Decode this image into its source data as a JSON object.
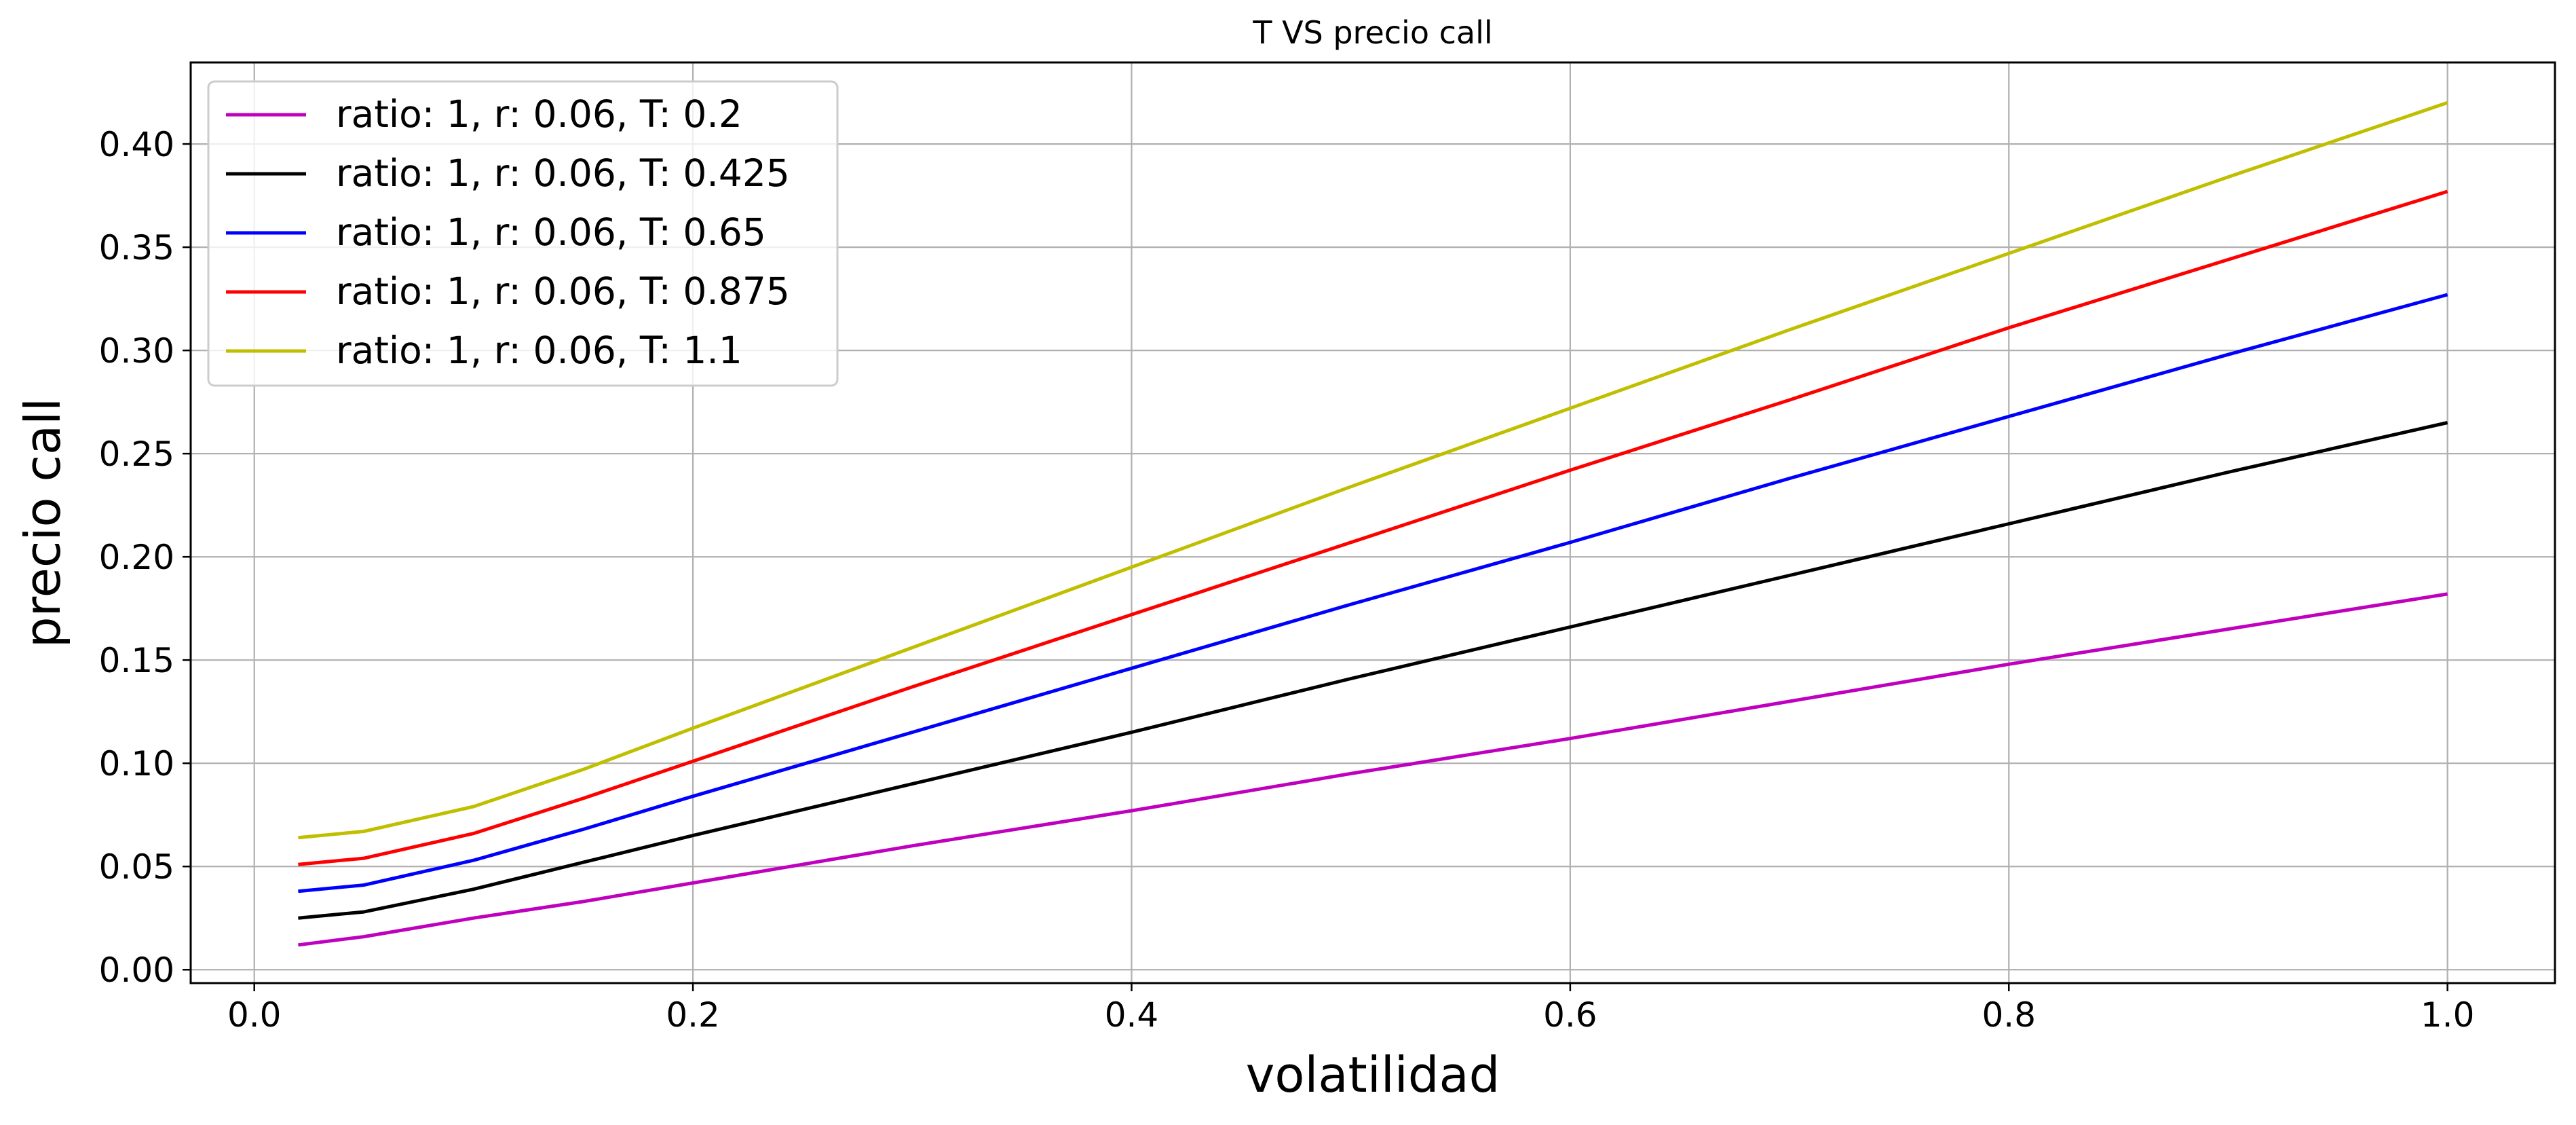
{
  "chart_data": {
    "type": "line",
    "title": "T VS precio call",
    "xlabel": "volatilidad",
    "ylabel": "precio call",
    "xlim": [
      -0.029,
      1.049
    ],
    "ylim": [
      -0.0065,
      0.4395
    ],
    "xticks": [
      0.0,
      0.2,
      0.4,
      0.6,
      0.8,
      1.0
    ],
    "xtick_labels": [
      "0.0",
      "0.2",
      "0.4",
      "0.6",
      "0.8",
      "1.0"
    ],
    "yticks": [
      0.0,
      0.05,
      0.1,
      0.15,
      0.2,
      0.25,
      0.3,
      0.35,
      0.4
    ],
    "ytick_labels": [
      "0.00",
      "0.05",
      "0.10",
      "0.15",
      "0.20",
      "0.25",
      "0.30",
      "0.35",
      "0.40"
    ],
    "grid": true,
    "legend_position": "top-left",
    "series": [
      {
        "name": "ratio: 1, r: 0.06, T: 0.2",
        "color": "#bf00bf",
        "x": [
          0.02,
          0.05,
          0.1,
          0.15,
          0.2,
          0.3,
          0.4,
          0.5,
          0.6,
          0.7,
          0.8,
          0.9,
          1.0
        ],
        "y": [
          0.012,
          0.016,
          0.025,
          0.033,
          0.042,
          0.06,
          0.077,
          0.095,
          0.112,
          0.13,
          0.148,
          0.165,
          0.182
        ]
      },
      {
        "name": "ratio: 1, r: 0.06, T: 0.425",
        "color": "#000000",
        "x": [
          0.02,
          0.05,
          0.1,
          0.15,
          0.2,
          0.3,
          0.4,
          0.5,
          0.6,
          0.7,
          0.8,
          0.9,
          1.0
        ],
        "y": [
          0.025,
          0.028,
          0.039,
          0.052,
          0.065,
          0.09,
          0.115,
          0.141,
          0.166,
          0.191,
          0.216,
          0.241,
          0.265
        ]
      },
      {
        "name": "ratio: 1, r: 0.06, T: 0.65",
        "color": "#0000ff",
        "x": [
          0.02,
          0.05,
          0.1,
          0.15,
          0.2,
          0.3,
          0.4,
          0.5,
          0.6,
          0.7,
          0.8,
          0.9,
          1.0
        ],
        "y": [
          0.038,
          0.041,
          0.053,
          0.068,
          0.084,
          0.115,
          0.146,
          0.177,
          0.207,
          0.238,
          0.268,
          0.298,
          0.327
        ]
      },
      {
        "name": "ratio: 1, r: 0.06, T: 0.875",
        "color": "#ff0000",
        "x": [
          0.02,
          0.05,
          0.1,
          0.15,
          0.2,
          0.3,
          0.4,
          0.5,
          0.6,
          0.7,
          0.8,
          0.9,
          1.0
        ],
        "y": [
          0.051,
          0.054,
          0.066,
          0.083,
          0.101,
          0.137,
          0.172,
          0.207,
          0.242,
          0.276,
          0.311,
          0.344,
          0.377
        ]
      },
      {
        "name": "ratio: 1, r: 0.06, T: 1.1",
        "color": "#bfbf00",
        "x": [
          0.02,
          0.05,
          0.1,
          0.15,
          0.2,
          0.3,
          0.4,
          0.5,
          0.6,
          0.7,
          0.8,
          0.9,
          1.0
        ],
        "y": [
          0.064,
          0.067,
          0.079,
          0.097,
          0.117,
          0.156,
          0.195,
          0.234,
          0.272,
          0.31,
          0.347,
          0.384,
          0.42
        ]
      }
    ]
  }
}
